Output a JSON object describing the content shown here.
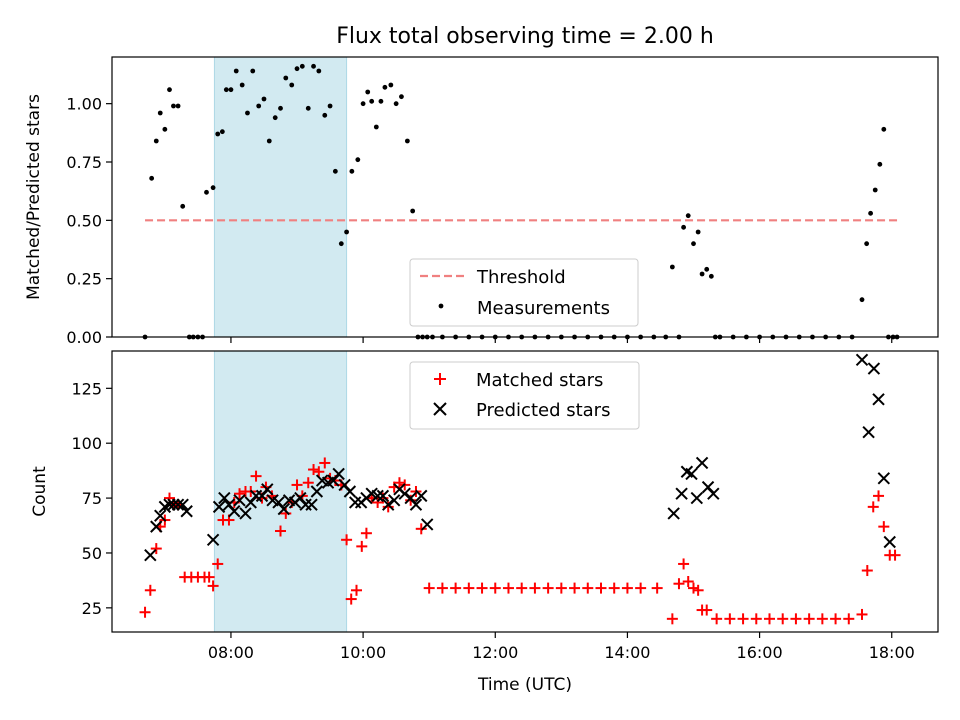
{
  "chart_data": [
    {
      "type": "scatter",
      "title": "Flux total observing time = 2.00 h",
      "xlabel": "",
      "ylabel": "Matched/Predicted stars",
      "xlim": [
        6.2,
        18.7
      ],
      "ylim": [
        0,
        1.2
      ],
      "xticks": [
        8,
        10,
        12,
        14,
        16,
        18
      ],
      "yticks": [
        0.0,
        0.25,
        0.5,
        0.75,
        1.0
      ],
      "ytick_labels": [
        "0.00",
        "0.25",
        "0.50",
        "0.75",
        "1.00"
      ],
      "highlight_span": [
        7.75,
        9.75
      ],
      "highlight_color": "#add8e6",
      "threshold": {
        "name": "Threshold",
        "value": 0.5,
        "x": [
          6.7,
          18.1
        ],
        "color": "#f08080"
      },
      "legend_position": "lower center",
      "series": [
        {
          "name": "Measurements",
          "marker": "dot",
          "color": "#000000",
          "x": [
            6.7,
            6.8,
            6.87,
            6.93,
            7.0,
            7.07,
            7.13,
            7.2,
            7.27,
            7.37,
            7.43,
            7.5,
            7.57,
            7.63,
            7.73,
            7.8,
            7.87,
            7.93,
            8.0,
            8.08,
            8.17,
            8.25,
            8.33,
            8.42,
            8.5,
            8.58,
            8.67,
            8.75,
            8.83,
            8.92,
            9.0,
            9.08,
            9.17,
            9.25,
            9.33,
            9.42,
            9.5,
            9.58,
            9.67,
            9.75,
            9.83,
            9.92,
            10.0,
            10.07,
            10.13,
            10.2,
            10.27,
            10.33,
            10.42,
            10.5,
            10.58,
            10.67,
            10.75,
            10.83,
            10.9,
            10.97,
            11.05,
            11.2,
            11.4,
            11.6,
            11.8,
            12.0,
            12.2,
            12.4,
            12.6,
            12.8,
            13.0,
            13.2,
            13.4,
            13.6,
            13.8,
            14.0,
            14.2,
            14.4,
            14.58,
            14.68,
            14.78,
            14.85,
            14.92,
            15.0,
            15.07,
            15.13,
            15.2,
            15.27,
            15.33,
            15.4,
            15.6,
            15.8,
            16.0,
            16.2,
            16.4,
            16.6,
            16.8,
            17.0,
            17.2,
            17.4,
            17.55,
            17.62,
            17.68,
            17.75,
            17.82,
            17.88,
            17.95,
            18.02,
            18.08
          ],
          "y": [
            0.0,
            0.68,
            0.84,
            0.96,
            0.89,
            1.06,
            0.99,
            0.99,
            0.56,
            0.0,
            0.0,
            0.0,
            0.0,
            0.62,
            0.64,
            0.87,
            0.88,
            1.06,
            1.06,
            1.14,
            1.08,
            0.96,
            1.14,
            0.99,
            1.02,
            0.84,
            0.94,
            0.98,
            1.11,
            1.08,
            1.15,
            1.16,
            0.98,
            1.16,
            1.14,
            0.95,
            0.99,
            0.71,
            0.4,
            0.45,
            0.71,
            0.76,
            1.0,
            1.05,
            1.01,
            0.9,
            1.01,
            1.07,
            1.08,
            1.0,
            1.03,
            0.84,
            0.54,
            0.0,
            0.0,
            0.0,
            0.0,
            0.0,
            0.0,
            0.0,
            0.0,
            0.0,
            0.0,
            0.0,
            0.0,
            0.0,
            0.0,
            0.0,
            0.0,
            0.0,
            0.0,
            0.0,
            0.0,
            0.0,
            0.0,
            0.3,
            0.0,
            0.47,
            0.52,
            0.4,
            0.45,
            0.27,
            0.29,
            0.26,
            0.0,
            0.0,
            0.0,
            0.0,
            0.0,
            0.0,
            0.0,
            0.0,
            0.0,
            0.0,
            0.0,
            0.0,
            0.16,
            0.4,
            0.53,
            0.63,
            0.74,
            0.89,
            0.0,
            0.0,
            0.0
          ]
        }
      ]
    },
    {
      "type": "scatter",
      "title": "",
      "xlabel": "Time (UTC)",
      "ylabel": "Count",
      "xlim": [
        6.2,
        18.7
      ],
      "ylim": [
        14,
        142
      ],
      "xticks": [
        8,
        10,
        12,
        14,
        16,
        18
      ],
      "xtick_labels": [
        "08:00",
        "10:00",
        "12:00",
        "14:00",
        "16:00",
        "18:00"
      ],
      "yticks": [
        25,
        50,
        75,
        100,
        125
      ],
      "ytick_labels": [
        "25",
        "50",
        "75",
        "100",
        "125"
      ],
      "highlight_span": [
        7.75,
        9.75
      ],
      "highlight_color": "#add8e6",
      "legend_position": "upper center",
      "series": [
        {
          "name": "Matched stars",
          "marker": "plus",
          "color": "#ff0000",
          "x": [
            6.7,
            6.78,
            6.87,
            6.93,
            7.0,
            7.07,
            7.13,
            7.2,
            7.3,
            7.4,
            7.5,
            7.6,
            7.67,
            7.73,
            7.8,
            7.88,
            7.97,
            8.05,
            8.13,
            8.22,
            8.3,
            8.38,
            8.47,
            8.53,
            8.62,
            8.75,
            8.83,
            8.92,
            9.0,
            9.08,
            9.17,
            9.25,
            9.33,
            9.42,
            9.5,
            9.58,
            9.67,
            9.75,
            9.82,
            9.9,
            9.98,
            10.05,
            10.13,
            10.22,
            10.3,
            10.38,
            10.47,
            10.55,
            10.63,
            10.72,
            10.8,
            10.88,
            11.0,
            11.2,
            11.4,
            11.6,
            11.8,
            12.0,
            12.2,
            12.4,
            12.6,
            12.8,
            13.0,
            13.2,
            13.4,
            13.6,
            13.8,
            14.0,
            14.2,
            14.45,
            14.68,
            14.78,
            14.85,
            14.92,
            15.0,
            15.07,
            15.13,
            15.2,
            15.35,
            15.55,
            15.75,
            15.95,
            16.15,
            16.35,
            16.55,
            16.75,
            16.95,
            17.15,
            17.35,
            17.55,
            17.63,
            17.72,
            17.8,
            17.88,
            17.97,
            18.05
          ],
          "y": [
            23,
            33,
            52,
            62,
            65,
            75,
            72,
            72,
            39,
            39,
            39,
            39,
            39,
            35,
            45,
            65,
            65,
            73,
            77,
            78,
            78,
            85,
            75,
            80,
            76,
            60,
            68,
            73,
            81,
            76,
            82,
            88,
            87,
            91,
            84,
            83,
            81,
            56,
            29,
            33,
            53,
            59,
            75,
            73,
            75,
            71,
            80,
            82,
            81,
            74,
            78,
            61,
            34,
            34,
            34,
            34,
            34,
            34,
            34,
            34,
            34,
            34,
            34,
            34,
            34,
            34,
            34,
            34,
            34,
            34,
            20,
            36,
            45,
            37,
            34,
            33,
            24,
            24,
            20,
            20,
            20,
            20,
            20,
            20,
            20,
            20,
            20,
            20,
            20,
            22,
            42,
            71,
            76,
            62,
            49,
            49
          ]
        },
        {
          "name": "Predicted stars",
          "marker": "x",
          "color": "#000000",
          "x": [
            6.78,
            6.87,
            6.93,
            7.0,
            7.07,
            7.13,
            7.2,
            7.27,
            7.33,
            7.73,
            7.82,
            7.9,
            7.97,
            8.05,
            8.13,
            8.22,
            8.3,
            8.38,
            8.47,
            8.55,
            8.63,
            8.72,
            8.8,
            8.88,
            8.97,
            9.05,
            9.13,
            9.22,
            9.3,
            9.38,
            9.47,
            9.55,
            9.63,
            9.72,
            9.8,
            9.88,
            9.97,
            10.05,
            10.13,
            10.22,
            10.3,
            10.38,
            10.47,
            10.55,
            10.63,
            10.72,
            10.8,
            10.88,
            10.97,
            14.7,
            14.82,
            14.9,
            14.97,
            15.05,
            15.13,
            15.22,
            15.3,
            17.55,
            17.65,
            17.73,
            17.8,
            17.88,
            17.97
          ],
          "y": [
            49,
            62,
            67,
            71,
            72,
            72,
            72,
            72,
            69,
            56,
            71,
            75,
            72,
            69,
            74,
            68,
            73,
            76,
            76,
            79,
            74,
            73,
            70,
            74,
            73,
            75,
            72,
            72,
            78,
            83,
            82,
            83,
            86,
            81,
            78,
            73,
            73,
            75,
            77,
            76,
            76,
            72,
            74,
            79,
            77,
            75,
            72,
            76,
            63,
            68,
            77,
            87,
            86,
            75,
            91,
            80,
            77,
            138,
            105,
            134,
            120,
            84,
            55
          ]
        }
      ]
    }
  ],
  "legend1": {
    "threshold_label": "Threshold",
    "measure_label": "Measurements"
  },
  "legend2": {
    "matched_label": "Matched stars",
    "predicted_label": "Predicted stars"
  }
}
